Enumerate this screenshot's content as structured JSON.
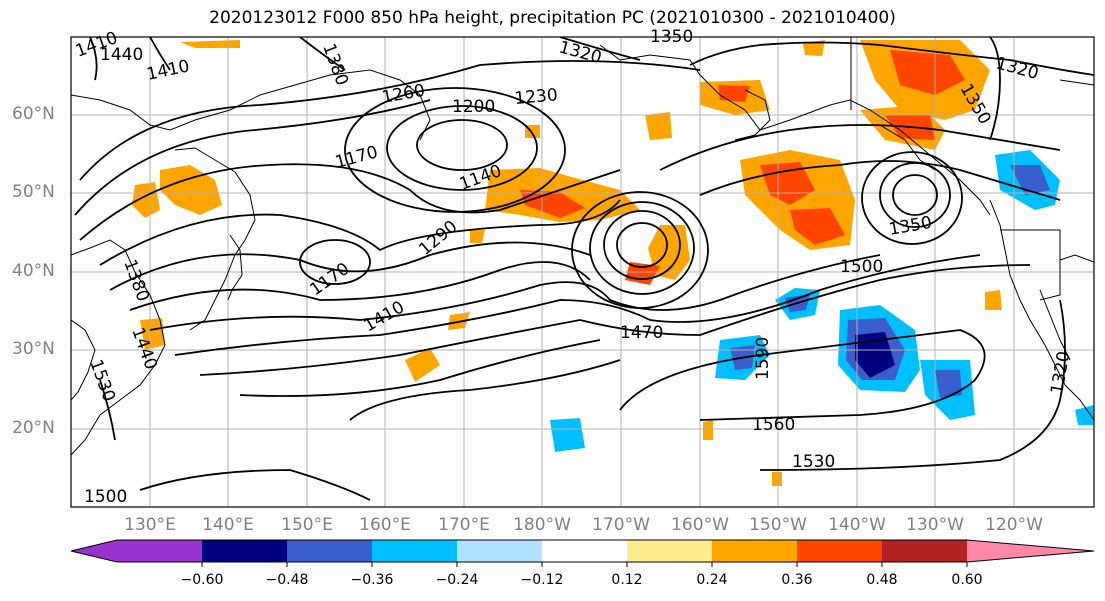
{
  "title": "2020123012 F000 850 hPa height, precipitation PC (2021010300 - 2021010400)",
  "latitude_labels": [
    "60°N",
    "50°N",
    "40°N",
    "30°N",
    "20°N"
  ],
  "longitude_labels": [
    "130°E",
    "140°E",
    "150°E",
    "160°E",
    "170°E",
    "180°W",
    "170°W",
    "160°W",
    "150°W",
    "140°W",
    "130°W",
    "120°W"
  ],
  "contour_labels": [
    "1410",
    "1440",
    "1410",
    "1380",
    "1320",
    "1350",
    "1260",
    "1200",
    "1230",
    "1170",
    "1140",
    "1290",
    "1170",
    "1410",
    "1380",
    "1440",
    "1530",
    "1500",
    "1470",
    "1590",
    "1560",
    "1530",
    "1500",
    "1320",
    "1350",
    "1350",
    "1320"
  ],
  "colorbar": {
    "ticks": [
      "−0.60",
      "−0.48",
      "−0.36",
      "−0.24",
      "−0.12",
      "0.12",
      "0.24",
      "0.36",
      "0.48",
      "0.60"
    ],
    "colors": [
      "#9932cc",
      "#000080",
      "#3a5fcd",
      "#00bfff",
      "#b0e2ff",
      "#ffffff",
      "#ffec8b",
      "#ffa500",
      "#ff4500",
      "#b22222",
      "#ff88aa"
    ]
  }
}
